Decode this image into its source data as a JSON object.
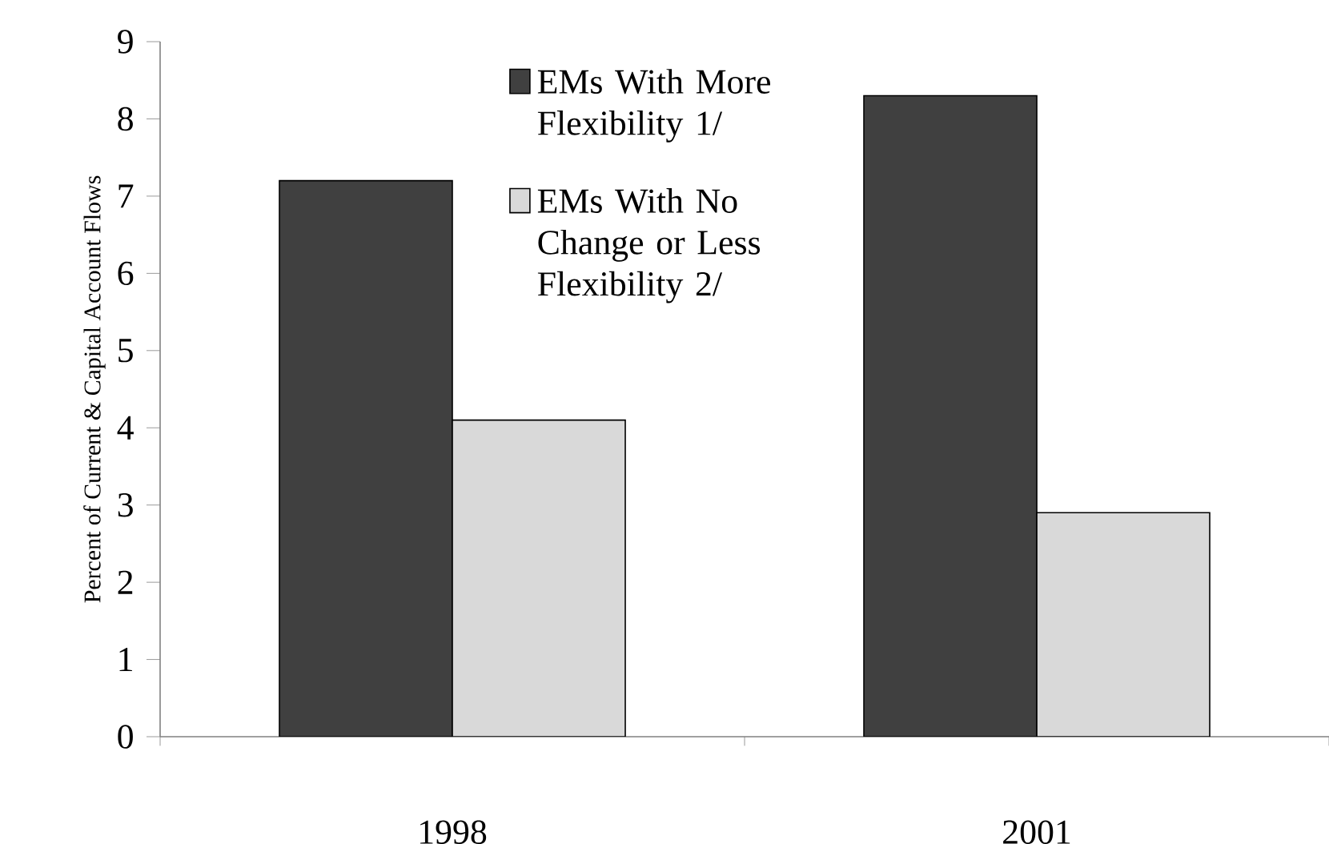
{
  "chart_data": {
    "type": "bar",
    "ylabel": "Percent of Current & Capital Account Flows",
    "categories": [
      "1998",
      "2001"
    ],
    "series": [
      {
        "name": "EMs With More Flexibility 1/",
        "color": "#404040",
        "values": [
          7.2,
          8.3
        ]
      },
      {
        "name": "EMs With No Change or Less Flexibility 2/",
        "color": "#d9d9d9",
        "values": [
          4.1,
          2.9
        ]
      }
    ],
    "ylim": [
      0,
      9
    ],
    "yticks": [
      0,
      1,
      2,
      3,
      4,
      5,
      6,
      7,
      8,
      9
    ],
    "grid": false,
    "legend": "top"
  }
}
